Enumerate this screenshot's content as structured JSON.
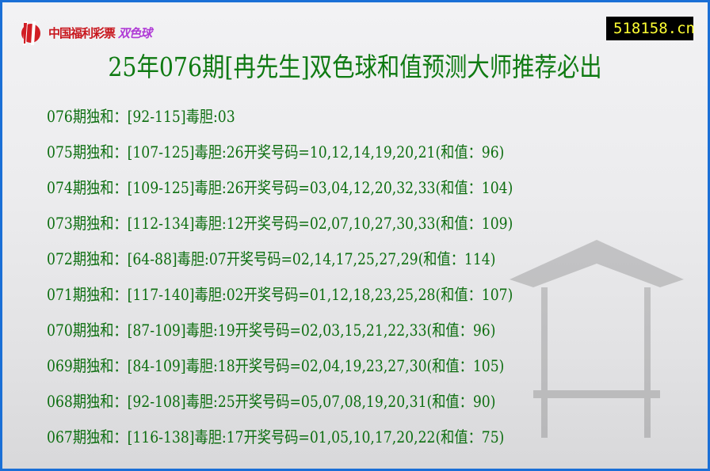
{
  "logo": {
    "text": "中国福利彩票",
    "product": "双色球"
  },
  "site": "518158.cn",
  "title": "25年076期[冉先生]双色球和值预测大师推荐必出",
  "colors": {
    "border": "#1a6fd6",
    "text": "#0d6e10",
    "site_bg": "#000000",
    "site_text": "#ffff33"
  },
  "rows": [
    "076期独和：[92-115]毒胆:03",
    "075期独和：[107-125]毒胆:26开奖号码=10,12,14,19,20,21(和值：96)",
    "074期独和：[109-125]毒胆:26开奖号码=03,04,12,20,32,33(和值：104)",
    "073期独和：[112-134]毒胆:12开奖号码=02,07,10,27,30,33(和值：109)",
    "072期独和：[64-88]毒胆:07开奖号码=02,14,17,25,27,29(和值：114)",
    "071期独和：[117-140]毒胆:02开奖号码=01,12,18,23,25,28(和值：107)",
    "070期独和：[87-109]毒胆:19开奖号码=02,03,15,21,22,33(和值：96)",
    "069期独和：[84-109]毒胆:18开奖号码=02,04,19,23,27,30(和值：105)",
    "068期独和：[92-108]毒胆:25开奖号码=05,07,08,19,20,31(和值：90)",
    "067期独和：[116-138]毒胆:17开奖号码=01,05,10,17,20,22(和值：75)"
  ]
}
